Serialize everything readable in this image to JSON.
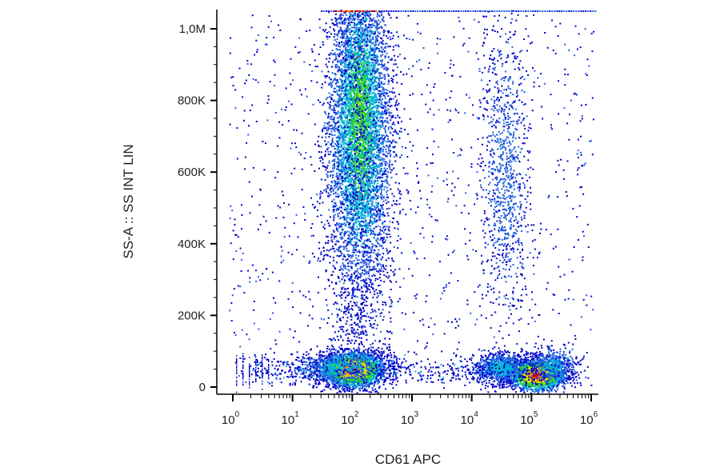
{
  "chart_data": {
    "type": "scatter",
    "subtype": "flow-cytometry density dot plot",
    "xlabel": "CD61 APC",
    "ylabel": "SS-A :: SS INT LIN",
    "x_scale": "log",
    "x_range": [
      1,
      1000000
    ],
    "x_ticks": [
      {
        "base": "10",
        "exp": "0",
        "value": 1
      },
      {
        "base": "10",
        "exp": "1",
        "value": 10
      },
      {
        "base": "10",
        "exp": "2",
        "value": 100
      },
      {
        "base": "10",
        "exp": "3",
        "value": 1000
      },
      {
        "base": "10",
        "exp": "4",
        "value": 10000
      },
      {
        "base": "10",
        "exp": "5",
        "value": 100000
      },
      {
        "base": "10",
        "exp": "6",
        "value": 1000000
      }
    ],
    "y_scale": "linear",
    "y_range": [
      0,
      1050000
    ],
    "y_ticks": [
      {
        "label": "0",
        "value": 0
      },
      {
        "label": "200K",
        "value": 200000
      },
      {
        "label": "400K",
        "value": 400000
      },
      {
        "label": "600K",
        "value": 600000
      },
      {
        "label": "800K",
        "value": 800000
      },
      {
        "label": "1,0M",
        "value": 1000000
      }
    ],
    "grid": false,
    "colormap": [
      "#0000c8",
      "#1f5fe0",
      "#00b4d8",
      "#2bd22b",
      "#e0e000",
      "#ff8a00",
      "#e00000"
    ],
    "populations": [
      {
        "x_center": 100,
        "y_center": 50000,
        "density": "very high",
        "color_peak": "#e00000"
      },
      {
        "x_center": 130,
        "y_center": 700000,
        "y_extent": [
          150000,
          1050000
        ],
        "density": "high",
        "color_peak": "#2bd22b"
      },
      {
        "x_center": 120000,
        "y_center": 35000,
        "density": "very high",
        "color_peak": "#e00000"
      },
      {
        "x_center": 30000,
        "y_center": 55000,
        "density": "medium",
        "color_peak": "#00b4d8"
      },
      {
        "x_center": 35000,
        "y_center": 600000,
        "y_extent": [
          100000,
          1000000
        ],
        "density": "low",
        "color_peak": "#1f5fe0"
      }
    ]
  }
}
